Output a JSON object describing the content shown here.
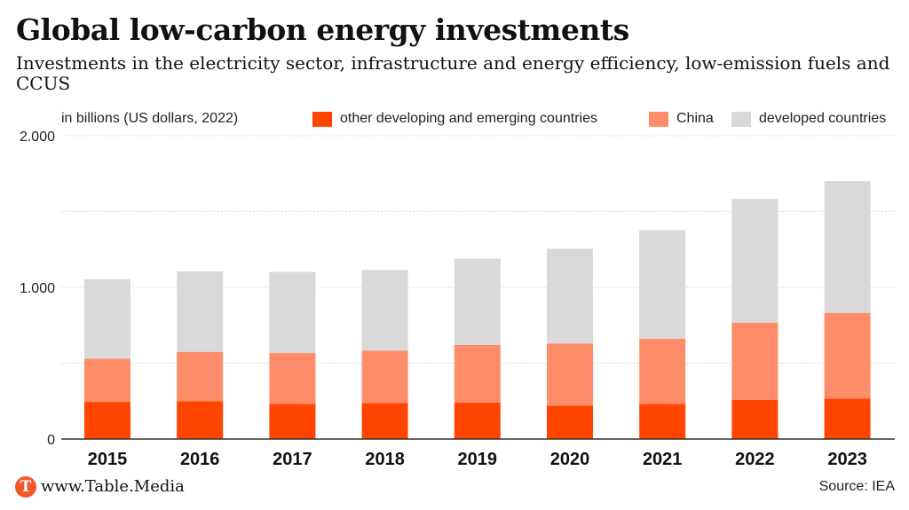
{
  "header": {
    "title": "Global low-carbon energy investments",
    "subtitle": "Investments in the electricity sector, infrastructure and energy efficiency, low-emission fuels and CCUS"
  },
  "footer": {
    "logo_letter": "T",
    "site": "www.Table.Media",
    "source": "Source: IEA"
  },
  "colors": {
    "other_developing": "#ff4500",
    "china": "#ff8c69",
    "developed": "#d9d9d9",
    "grid": "#dddddd",
    "axis": "#333333"
  },
  "chart_data": {
    "type": "bar",
    "stacked": true,
    "unit_label": "in billions (US dollars, 2022)",
    "categories": [
      "2015",
      "2016",
      "2017",
      "2018",
      "2019",
      "2020",
      "2021",
      "2022",
      "2023"
    ],
    "series": [
      {
        "name": "other developing and emerging countries",
        "color": "#ff4500",
        "values": [
          245,
          250,
          232,
          238,
          240,
          220,
          232,
          258,
          266
        ]
      },
      {
        "name": "China",
        "color": "#ff8c69",
        "values": [
          285,
          325,
          335,
          345,
          380,
          410,
          430,
          510,
          565
        ]
      },
      {
        "name": "developed countries",
        "color": "#d9d9d9",
        "values": [
          525,
          530,
          535,
          532,
          570,
          625,
          715,
          815,
          870
        ]
      }
    ],
    "ylim": [
      0,
      2000
    ],
    "yticks": [
      0,
      1000,
      2000
    ],
    "ytick_labels": [
      "0",
      "1.000",
      "2.000"
    ],
    "grid": true,
    "legend_position": "top-right"
  }
}
